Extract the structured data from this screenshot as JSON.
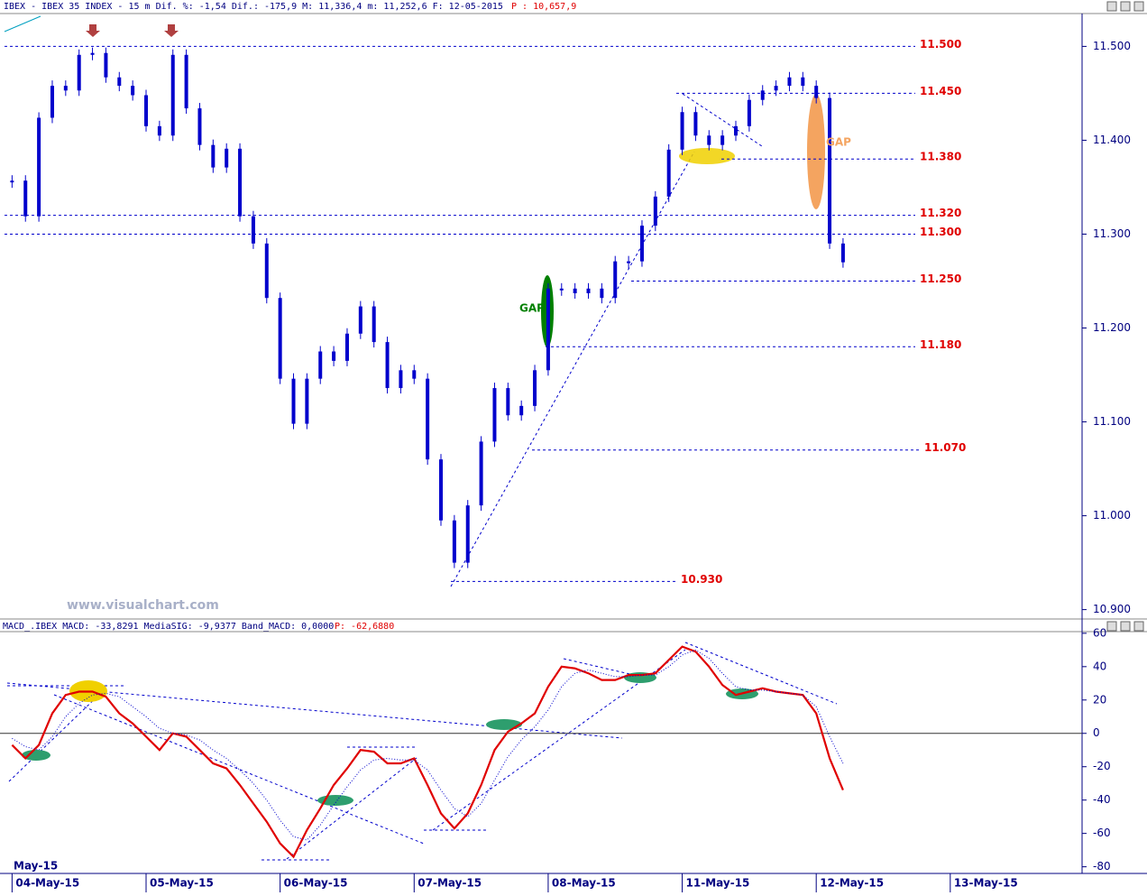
{
  "header": {
    "text": "IBEX - IBEX 35 INDEX -  15 m Dif. %: -1,54 Dif.: -175,9 M: 11,336,4 m: 11,252,6 F: 12-05-2015",
    "price": "P : 10,657,9"
  },
  "watermark": "www.visualchart.com",
  "chart_data": [
    {
      "type": "candlestick",
      "color": "#0000cc",
      "x": [
        0.0,
        0.1,
        0.2,
        0.3,
        0.4,
        0.5,
        0.6,
        0.7,
        0.8,
        0.9,
        1.0,
        1.1,
        1.2,
        1.3,
        1.4,
        1.5,
        1.6,
        1.7,
        1.8,
        1.9,
        2.0,
        2.1,
        2.2,
        2.3,
        2.4,
        2.5,
        2.6,
        2.7,
        2.8,
        2.9,
        3.0,
        3.1,
        3.2,
        3.3,
        3.4,
        3.5,
        3.6,
        3.7,
        3.8,
        3.9,
        4.0,
        4.1,
        4.2,
        4.3,
        4.4,
        4.5,
        4.6,
        4.7,
        4.8,
        4.9,
        5.0,
        5.1,
        5.2,
        5.3,
        5.4,
        5.5,
        5.6,
        5.7,
        5.8,
        5.9,
        6.0,
        6.1,
        6.2
      ],
      "values": [
        11.357,
        11.319,
        11.424,
        11.458,
        11.453,
        11.491,
        11.493,
        11.467,
        11.458,
        11.448,
        11.415,
        11.405,
        11.491,
        11.434,
        11.395,
        11.371,
        11.391,
        11.319,
        11.29,
        11.232,
        11.146,
        11.098,
        11.146,
        11.175,
        11.165,
        11.194,
        11.223,
        11.185,
        11.136,
        11.155,
        11.146,
        11.06,
        10.995,
        10.95,
        11.011,
        11.079,
        11.136,
        11.107,
        11.117,
        11.155,
        11.242,
        11.242,
        11.237,
        11.242,
        11.232,
        11.271,
        11.271,
        11.309,
        11.34,
        11.39,
        11.43,
        11.405,
        11.395,
        11.405,
        11.415,
        11.443,
        11.453,
        11.458,
        11.467,
        11.458,
        11.445,
        11.29,
        11.27
      ],
      "xlim": [
        -0.09,
        7.97
      ],
      "xticks": [
        {
          "value": 0,
          "label": "04-May-15"
        },
        {
          "value": 1,
          "label": "05-May-15"
        },
        {
          "value": 2,
          "label": "06-May-15"
        },
        {
          "value": 3,
          "label": "07-May-15"
        },
        {
          "value": 4,
          "label": "08-May-15"
        },
        {
          "value": 5,
          "label": "11-May-15"
        },
        {
          "value": 6,
          "label": "12-May-15"
        },
        {
          "value": 7,
          "label": "13-May-15"
        }
      ],
      "x_axis_period": "May-15",
      "ylim": [
        10.89,
        11.535
      ],
      "yticks": [
        {
          "value": 11.5,
          "label": "11.500"
        },
        {
          "value": 11.4,
          "label": "11.400"
        },
        {
          "value": 11.3,
          "label": "11.300"
        },
        {
          "value": 11.2,
          "label": "11.200"
        },
        {
          "value": 11.1,
          "label": "11.100"
        },
        {
          "value": 11.0,
          "label": "11.000"
        },
        {
          "value": 10.9,
          "label": "10.900"
        }
      ],
      "levels": [
        {
          "value": 11.5,
          "label": "11.500"
        },
        {
          "value": 11.45,
          "label": "11.450"
        },
        {
          "value": 11.38,
          "label": "11.380"
        },
        {
          "value": 11.32,
          "label": "11.320"
        },
        {
          "value": 11.3,
          "label": "11.300"
        },
        {
          "value": 11.25,
          "label": "11.250"
        },
        {
          "value": 11.18,
          "label": "11.180"
        },
        {
          "value": 11.07,
          "label": "11.070"
        },
        {
          "value": 10.93,
          "label": "10.930"
        }
      ],
      "annotations": [
        {
          "text": "GAP",
          "color": "#008000"
        },
        {
          "text": "GAP",
          "color": "#f4a460"
        }
      ]
    },
    {
      "type": "line",
      "title": "MACD_.IBEX MACD: -33,8291 MediaSIG: -9,9377 Band_MACD: 0,0000",
      "title_price": "P: -62,6880",
      "ylim": [
        -84,
        61
      ],
      "yticks": [
        60,
        40,
        20,
        0,
        -20,
        -40,
        -60,
        -80
      ],
      "series": [
        {
          "color": "#e00000",
          "values": [
            -7,
            -15,
            -7,
            12,
            23,
            25,
            25,
            22,
            12,
            6,
            -2,
            -10,
            0,
            -2,
            -10,
            -18,
            -21,
            -31,
            -42,
            -53,
            -66,
            -74,
            -58,
            -45,
            -31,
            -21,
            -10,
            -11,
            -18,
            -18,
            -15,
            -31,
            -48,
            -57,
            -48,
            -31,
            -10,
            1,
            6,
            12,
            28,
            40,
            39,
            36,
            32,
            32,
            35,
            35,
            36,
            44,
            52,
            49,
            40,
            29,
            23,
            25,
            27,
            25,
            24,
            23,
            12,
            -15,
            -34
          ]
        },
        {
          "color": "#0000cc",
          "dotted": true,
          "values": [
            -3,
            -8,
            -10,
            -2,
            10,
            18,
            23,
            24,
            22,
            16,
            10,
            3,
            0,
            -1,
            -4,
            -10,
            -15,
            -22,
            -30,
            -40,
            -52,
            -62,
            -64,
            -55,
            -43,
            -32,
            -22,
            -16,
            -15,
            -16,
            -16,
            -22,
            -34,
            -45,
            -50,
            -42,
            -28,
            -14,
            -4,
            4,
            14,
            28,
            36,
            38,
            36,
            34,
            34,
            35,
            35,
            40,
            47,
            50,
            45,
            36,
            28,
            26,
            26,
            25,
            24,
            23,
            16,
            -2,
            -18
          ]
        }
      ]
    }
  ]
}
